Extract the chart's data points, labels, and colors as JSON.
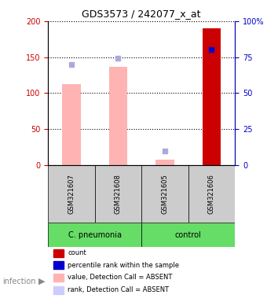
{
  "title": "GDS3573 / 242077_x_at",
  "samples": [
    "GSM321607",
    "GSM321608",
    "GSM321605",
    "GSM321606"
  ],
  "bar_values": [
    112,
    137,
    7,
    190
  ],
  "bar_colors": [
    "#FFB3B3",
    "#FFB3B3",
    "#FFB3B3",
    "#CC0000"
  ],
  "bar_absent": [
    true,
    true,
    true,
    false
  ],
  "percentile_values": [
    70,
    74,
    10,
    80
  ],
  "percentile_colors": [
    "#AAAADD",
    "#AAAADD",
    "#AAAADD",
    "#0000CC"
  ],
  "percentile_absent": [
    true,
    true,
    true,
    false
  ],
  "ylim_left": [
    0,
    200
  ],
  "ylim_right": [
    0,
    100
  ],
  "yticks_left": [
    0,
    50,
    100,
    150,
    200
  ],
  "yticks_right": [
    0,
    25,
    50,
    75,
    100
  ],
  "ytick_labels_right": [
    "0",
    "25",
    "50",
    "75",
    "100%"
  ],
  "groups": [
    {
      "label": "C. pneumonia",
      "samples": [
        0,
        1
      ],
      "color": "#66DD66"
    },
    {
      "label": "control",
      "samples": [
        2,
        3
      ],
      "color": "#66DD66"
    }
  ],
  "legend": [
    {
      "label": "count",
      "color": "#CC0000"
    },
    {
      "label": "percentile rank within the sample",
      "color": "#0000CC"
    },
    {
      "label": "value, Detection Call = ABSENT",
      "color": "#FFB3B3"
    },
    {
      "label": "rank, Detection Call = ABSENT",
      "color": "#CCCCFF"
    }
  ],
  "bar_width": 0.4,
  "left_axis_color": "#CC0000",
  "right_axis_color": "#0000CC"
}
